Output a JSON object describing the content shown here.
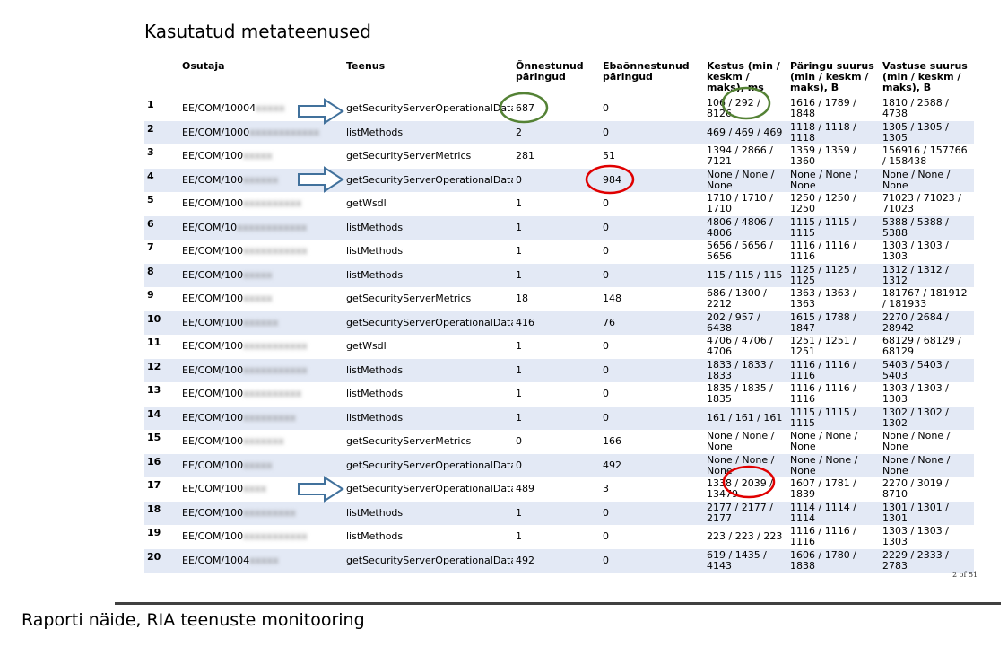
{
  "document": {
    "title": "Kasutatud metateenused",
    "page_number": "2 of 51",
    "caption": "Raporti näide, RIA teenuste monitooring"
  },
  "table": {
    "headers": [
      "",
      "Osutaja",
      "Teenus",
      "Õnnestunud päringud",
      "Ebaõnnestunud päringud",
      "Kestus (min / keskm / maks), ms",
      "Päringu suurus (min / keskm / maks), B",
      "Vastuse suurus (min / keskm / maks), B"
    ],
    "rows": [
      {
        "idx": "1",
        "provider": "EE/COM/10004",
        "provider_blurred": "xxxxx",
        "service": "getSecurityServerOperationalData",
        "ok": "687",
        "fail": "0",
        "duration": "106 / 292 / 8126",
        "req_size": "1616 / 1789 / 1848",
        "resp_size": "1810 / 2588 / 4738"
      },
      {
        "idx": "2",
        "provider": "EE/COM/1000",
        "provider_blurred": "xxxxxxxxxxxx",
        "service": "listMethods",
        "ok": "2",
        "fail": "0",
        "duration": "469 / 469 / 469",
        "req_size": "1118 / 1118 / 1118",
        "resp_size": "1305 / 1305 / 1305"
      },
      {
        "idx": "3",
        "provider": "EE/COM/100",
        "provider_blurred": "xxxxx",
        "service": "getSecurityServerMetrics",
        "ok": "281",
        "fail": "51",
        "duration": "1394 / 2866 / 7121",
        "req_size": "1359 / 1359 / 1360",
        "resp_size": "156916 / 157766 / 158438"
      },
      {
        "idx": "4",
        "provider": "EE/COM/100",
        "provider_blurred": "xxxxxx",
        "service": "getSecurityServerOperationalData",
        "ok": "0",
        "fail": "984",
        "duration": "None / None / None",
        "req_size": "None / None / None",
        "resp_size": "None / None / None"
      },
      {
        "idx": "5",
        "provider": "EE/COM/100",
        "provider_blurred": "xxxxxxxxxx",
        "service": "getWsdl",
        "ok": "1",
        "fail": "0",
        "duration": "1710 / 1710 / 1710",
        "req_size": "1250 / 1250 / 1250",
        "resp_size": "71023 / 71023 / 71023"
      },
      {
        "idx": "6",
        "provider": "EE/COM/10",
        "provider_blurred": "xxxxxxxxxxxx",
        "service": "listMethods",
        "ok": "1",
        "fail": "0",
        "duration": "4806 / 4806 / 4806",
        "req_size": "1115 / 1115 / 1115",
        "resp_size": "5388 / 5388 / 5388"
      },
      {
        "idx": "7",
        "provider": "EE/COM/100",
        "provider_blurred": "xxxxxxxxxxx",
        "service": "listMethods",
        "ok": "1",
        "fail": "0",
        "duration": "5656 / 5656 / 5656",
        "req_size": "1116 / 1116 / 1116",
        "resp_size": "1303 / 1303 / 1303"
      },
      {
        "idx": "8",
        "provider": "EE/COM/100",
        "provider_blurred": "xxxxx",
        "service": "listMethods",
        "ok": "1",
        "fail": "0",
        "duration": "115 / 115 / 115",
        "req_size": "1125 / 1125 / 1125",
        "resp_size": "1312 / 1312 / 1312"
      },
      {
        "idx": "9",
        "provider": "EE/COM/100",
        "provider_blurred": "xxxxx",
        "service": "getSecurityServerMetrics",
        "ok": "18",
        "fail": "148",
        "duration": "686 / 1300 / 2212",
        "req_size": "1363 / 1363 / 1363",
        "resp_size": "181767 / 181912 / 181933"
      },
      {
        "idx": "10",
        "provider": "EE/COM/100",
        "provider_blurred": "xxxxxx",
        "service": "getSecurityServerOperationalData",
        "ok": "416",
        "fail": "76",
        "duration": "202 / 957 / 6438",
        "req_size": "1615 / 1788 / 1847",
        "resp_size": "2270 / 2684 / 28942"
      },
      {
        "idx": "11",
        "provider": "EE/COM/100",
        "provider_blurred": "xxxxxxxxxxx",
        "service": "getWsdl",
        "ok": "1",
        "fail": "0",
        "duration": "4706 / 4706 / 4706",
        "req_size": "1251 / 1251 / 1251",
        "resp_size": "68129 / 68129 / 68129"
      },
      {
        "idx": "12",
        "provider": "EE/COM/100",
        "provider_blurred": "xxxxxxxxxxx",
        "service": "listMethods",
        "ok": "1",
        "fail": "0",
        "duration": "1833 / 1833 / 1833",
        "req_size": "1116 / 1116 / 1116",
        "resp_size": "5403 / 5403 / 5403"
      },
      {
        "idx": "13",
        "provider": "EE/COM/100",
        "provider_blurred": "xxxxxxxxxx",
        "service": "listMethods",
        "ok": "1",
        "fail": "0",
        "duration": "1835 / 1835 / 1835",
        "req_size": "1116 / 1116 / 1116",
        "resp_size": "1303 / 1303 / 1303"
      },
      {
        "idx": "14",
        "provider": "EE/COM/100",
        "provider_blurred": "xxxxxxxxx",
        "service": "listMethods",
        "ok": "1",
        "fail": "0",
        "duration": "161 / 161 / 161",
        "req_size": "1115 / 1115 / 1115",
        "resp_size": "1302 / 1302 / 1302"
      },
      {
        "idx": "15",
        "provider": "EE/COM/100",
        "provider_blurred": "xxxxxxx",
        "service": "getSecurityServerMetrics",
        "ok": "0",
        "fail": "166",
        "duration": "None / None / None",
        "req_size": "None / None / None",
        "resp_size": "None / None / None"
      },
      {
        "idx": "16",
        "provider": "EE/COM/100",
        "provider_blurred": "xxxxx",
        "service": "getSecurityServerOperationalData",
        "ok": "0",
        "fail": "492",
        "duration": "None / None / None",
        "req_size": "None / None / None",
        "resp_size": "None / None / None"
      },
      {
        "idx": "17",
        "provider": "EE/COM/100",
        "provider_blurred": "xxxx",
        "service": "getSecurityServerOperationalData",
        "ok": "489",
        "fail": "3",
        "duration": "1338 / 2039 / 13479",
        "req_size": "1607 / 1781 / 1839",
        "resp_size": "2270 / 3019 / 8710"
      },
      {
        "idx": "18",
        "provider": "EE/COM/100",
        "provider_blurred": "xxxxxxxxx",
        "service": "listMethods",
        "ok": "1",
        "fail": "0",
        "duration": "2177 / 2177 / 2177",
        "req_size": "1114 / 1114 / 1114",
        "resp_size": "1301 / 1301 / 1301"
      },
      {
        "idx": "19",
        "provider": "EE/COM/100",
        "provider_blurred": "xxxxxxxxxxx",
        "service": "listMethods",
        "ok": "1",
        "fail": "0",
        "duration": "223 / 223 / 223",
        "req_size": "1116 / 1116 / 1116",
        "resp_size": "1303 / 1303 / 1303"
      },
      {
        "idx": "20",
        "provider": "EE/COM/1004",
        "provider_blurred": "xxxxx",
        "service": "getSecurityServerOperationalData",
        "ok": "492",
        "fail": "0",
        "duration": "619 / 1435 / 4143",
        "req_size": "1606 / 1780 / 1838",
        "resp_size": "2229 / 2333 / 2783"
      }
    ]
  },
  "annotations": {
    "arrow_color": "#41719c",
    "green_circle_color": "#548235",
    "red_circle_color": "#e00000"
  }
}
